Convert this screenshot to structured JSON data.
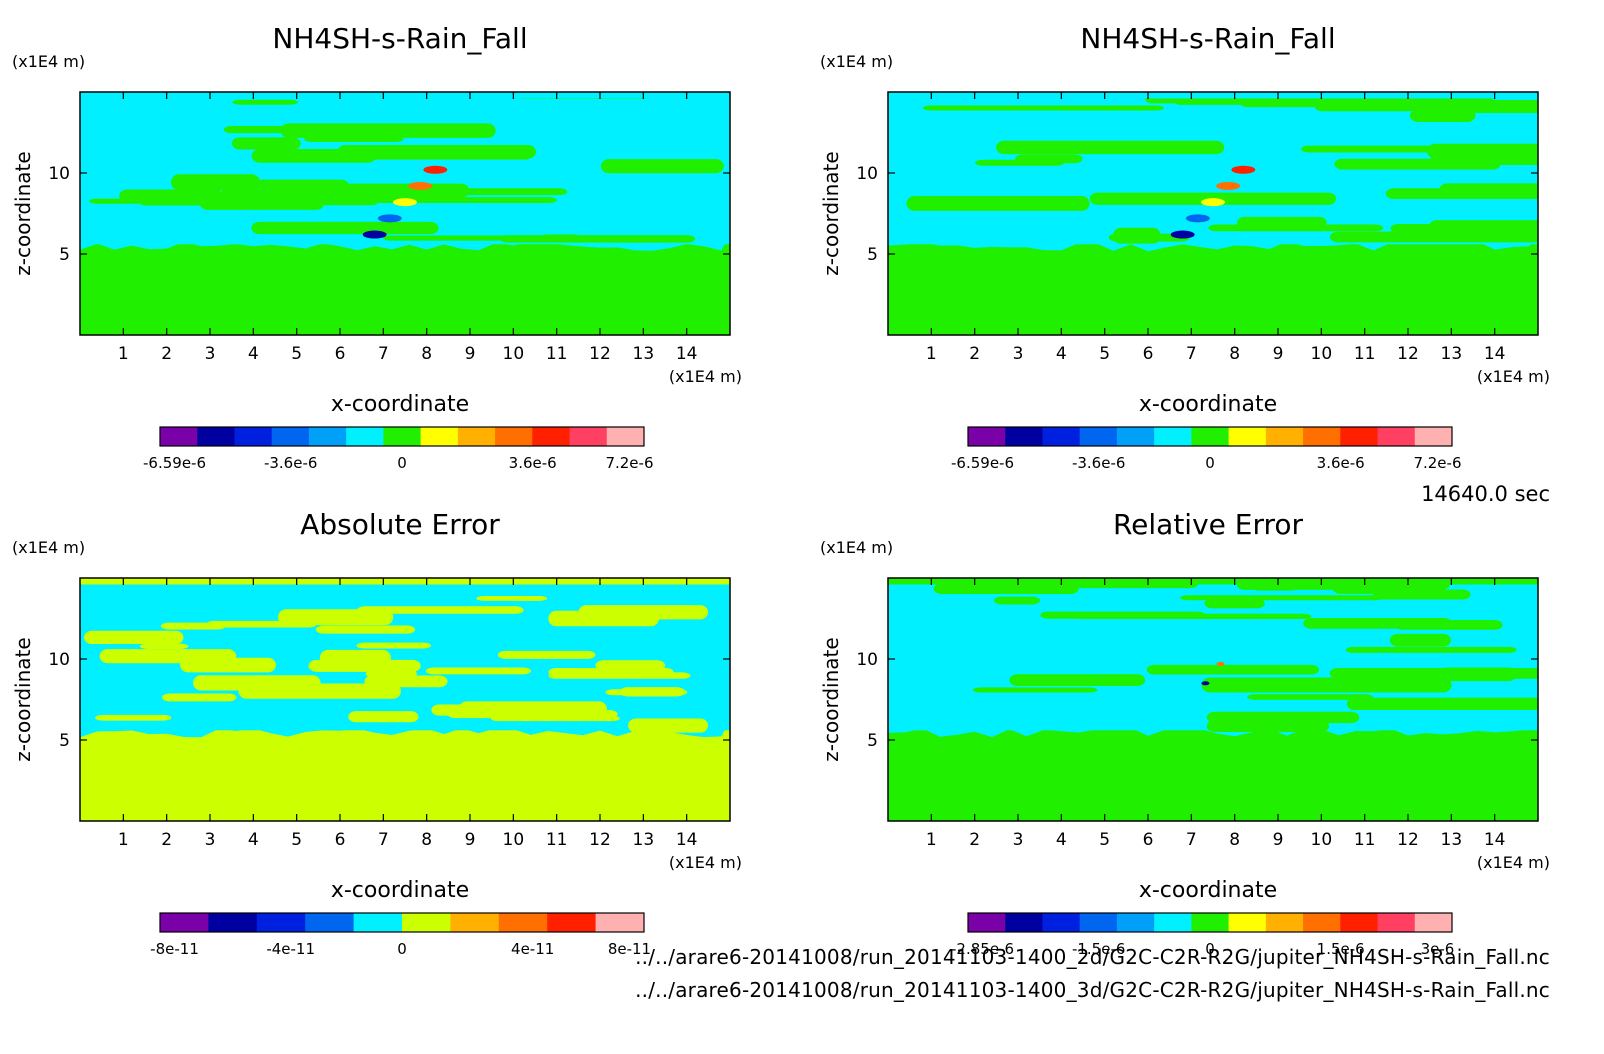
{
  "time_label": "14640.0 sec",
  "files": [
    "../../arare6-20141008/run_20141103-1400_2d/G2C-C2R-R2G/jupiter_NH4SH-s-Rain_Fall.nc",
    "../../arare6-20141008/run_20141103-1400_3d/G2C-C2R-R2G/jupiter_NH4SH-s-Rain_Fall.nc"
  ],
  "chart_data": [
    {
      "type": "heatmap",
      "title": "NH4SH-s-Rain_Fall",
      "xlabel": "x-coordinate",
      "ylabel": "z-coordinate",
      "x_unit": "(x1E4 m)",
      "y_unit": "(x1E4 m)",
      "xlim": [
        0,
        15
      ],
      "ylim": [
        0,
        15
      ],
      "xticks": [
        1,
        2,
        3,
        4,
        5,
        6,
        7,
        8,
        9,
        10,
        11,
        12,
        13,
        14
      ],
      "yticks": [
        5,
        10
      ],
      "grid": false,
      "colorbar": {
        "colors": [
          "#7a00a8",
          "#0000a0",
          "#0020e0",
          "#0066f0",
          "#00a0f8",
          "#00f0ff",
          "#20f000",
          "#ffff00",
          "#ffb000",
          "#ff7000",
          "#ff2000",
          "#ff4060",
          "#ffb0b0"
        ],
        "labels": [
          "-6.59e-6",
          "-3.6e-6",
          "0",
          "3.6e-6",
          "7.2e-6"
        ]
      },
      "fields": {
        "base": "#20f000",
        "upper": "#00f0ff",
        "stripe": "#20f000",
        "top_band": "#00f0ff",
        "features": [
          "#0000a0",
          "#0066f0",
          "#ffff00",
          "#ff7000",
          "#ff2000"
        ]
      }
    },
    {
      "type": "heatmap",
      "title": "NH4SH-s-Rain_Fall",
      "xlabel": "x-coordinate",
      "ylabel": "z-coordinate",
      "x_unit": "(x1E4 m)",
      "y_unit": "(x1E4 m)",
      "xlim": [
        0,
        15
      ],
      "ylim": [
        0,
        15
      ],
      "xticks": [
        1,
        2,
        3,
        4,
        5,
        6,
        7,
        8,
        9,
        10,
        11,
        12,
        13,
        14
      ],
      "yticks": [
        5,
        10
      ],
      "grid": false,
      "colorbar": {
        "colors": [
          "#7a00a8",
          "#0000a0",
          "#0020e0",
          "#0066f0",
          "#00a0f8",
          "#00f0ff",
          "#20f000",
          "#ffff00",
          "#ffb000",
          "#ff7000",
          "#ff2000",
          "#ff4060",
          "#ffb0b0"
        ],
        "labels": [
          "-6.59e-6",
          "-3.6e-6",
          "0",
          "3.6e-6",
          "7.2e-6"
        ]
      },
      "fields": {
        "base": "#20f000",
        "upper": "#00f0ff",
        "stripe": "#20f000",
        "top_band": "#00f0ff",
        "features": [
          "#0000a0",
          "#0066f0",
          "#ffff00",
          "#ff7000",
          "#ff2000"
        ]
      }
    },
    {
      "type": "heatmap",
      "title": "Absolute Error",
      "xlabel": "x-coordinate",
      "ylabel": "z-coordinate",
      "x_unit": "(x1E4 m)",
      "y_unit": "(x1E4 m)",
      "xlim": [
        0,
        15
      ],
      "ylim": [
        0,
        15
      ],
      "xticks": [
        1,
        2,
        3,
        4,
        5,
        6,
        7,
        8,
        9,
        10,
        11,
        12,
        13,
        14
      ],
      "yticks": [
        5,
        10
      ],
      "grid": false,
      "colorbar": {
        "colors": [
          "#7a00a8",
          "#0000a0",
          "#0020e0",
          "#0066f0",
          "#00f0ff",
          "#ccff00",
          "#ffb000",
          "#ff7000",
          "#ff2000",
          "#ffb0b0"
        ],
        "labels": [
          "-8e-11",
          "-4e-11",
          "0",
          "4e-11",
          "8e-11"
        ]
      },
      "fields": {
        "base": "#ccff00",
        "upper": "#00f0ff",
        "stripe": "#ccff00",
        "top_band": "#ccff00",
        "features": []
      }
    },
    {
      "type": "heatmap",
      "title": "Relative Error",
      "xlabel": "x-coordinate",
      "ylabel": "z-coordinate",
      "x_unit": "(x1E4 m)",
      "y_unit": "(x1E4 m)",
      "xlim": [
        0,
        15
      ],
      "ylim": [
        0,
        15
      ],
      "xticks": [
        1,
        2,
        3,
        4,
        5,
        6,
        7,
        8,
        9,
        10,
        11,
        12,
        13,
        14
      ],
      "yticks": [
        5,
        10
      ],
      "grid": false,
      "colorbar": {
        "colors": [
          "#7a00a8",
          "#0000a0",
          "#0020e0",
          "#0066f0",
          "#00a0f8",
          "#00f0ff",
          "#20f000",
          "#ffff00",
          "#ffb000",
          "#ff7000",
          "#ff2000",
          "#ff4060",
          "#ffb0b0"
        ],
        "labels": [
          "-2.85e-6",
          "-1.5e-6",
          "0",
          "1.5e-6",
          "3e-6"
        ]
      },
      "fields": {
        "base": "#20f000",
        "upper": "#00f0ff",
        "stripe": "#20f000",
        "top_band": "#20f000",
        "features": [
          "#0000a0",
          "#ff7000"
        ]
      }
    }
  ]
}
